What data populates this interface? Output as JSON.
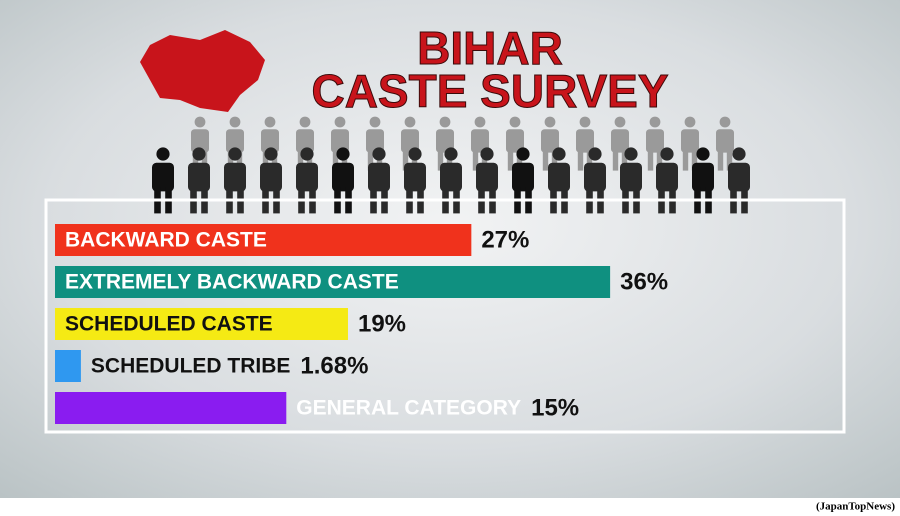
{
  "chart_data": {
    "type": "bar",
    "orientation": "horizontal",
    "title": [
      "BIHAR",
      "CASTE SURVEY"
    ],
    "categories": [
      "BACKWARD CASTE",
      "EXTREMELY BACKWARD CASTE",
      "SCHEDULED CASTE",
      "SCHEDULED TRIBE",
      "GENERAL CATEGORY"
    ],
    "values": [
      27,
      36,
      19,
      1.68,
      15
    ],
    "value_labels": [
      "27%",
      "36%",
      "19%",
      "1.68%",
      "15%"
    ],
    "colors": [
      "#f0321c",
      "#0f9080",
      "#f5ea14",
      "#2f98f0",
      "#8a1cf0"
    ],
    "label_colors": [
      "#ffffff",
      "#ffffff",
      "#111111",
      "#111111",
      "#ffffff"
    ],
    "source": "(JapanTopNews)"
  }
}
